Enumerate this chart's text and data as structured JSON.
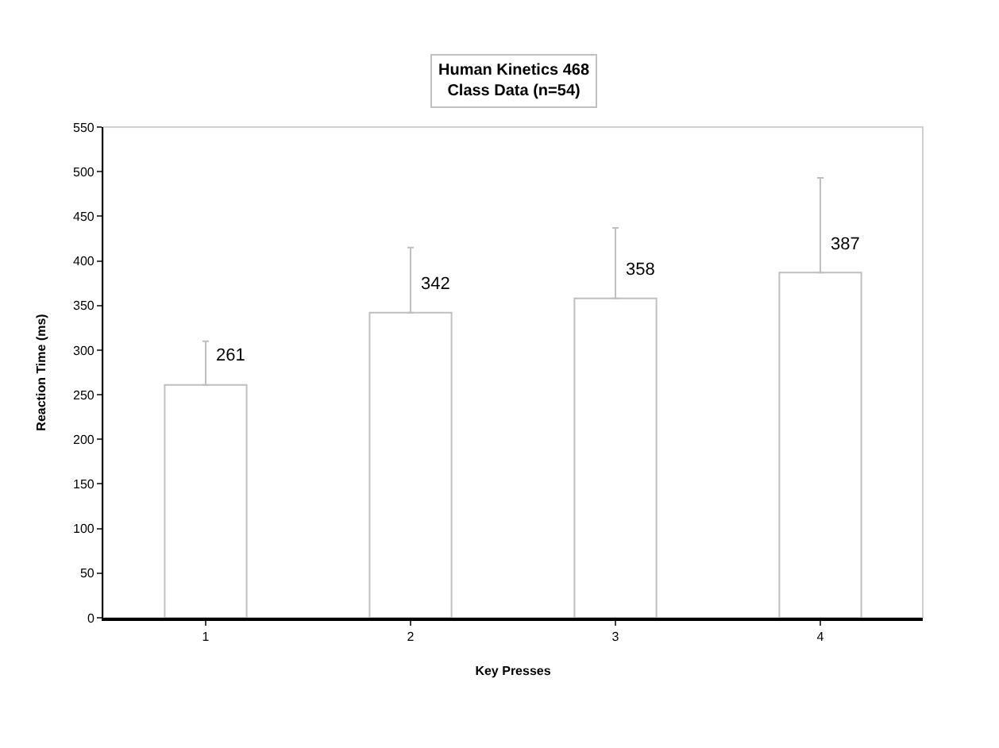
{
  "chart_data": {
    "type": "bar",
    "title": "Human Kinetics 468\nClass Data (n=54)",
    "xlabel": "Key Presses",
    "ylabel": "Reaction Time (ms)",
    "categories": [
      "1",
      "2",
      "3",
      "4"
    ],
    "values": [
      261,
      342,
      358,
      387
    ],
    "errors": [
      [
        261,
        310
      ],
      [
        342,
        415
      ],
      [
        358,
        437
      ],
      [
        387,
        493
      ]
    ],
    "color": "#ffffff",
    "ylim": [
      0,
      550
    ],
    "yticks": [
      0,
      50,
      100,
      150,
      200,
      250,
      300,
      350,
      400,
      450,
      500,
      550
    ],
    "data_labels": true,
    "grid": false,
    "legend": false
  }
}
